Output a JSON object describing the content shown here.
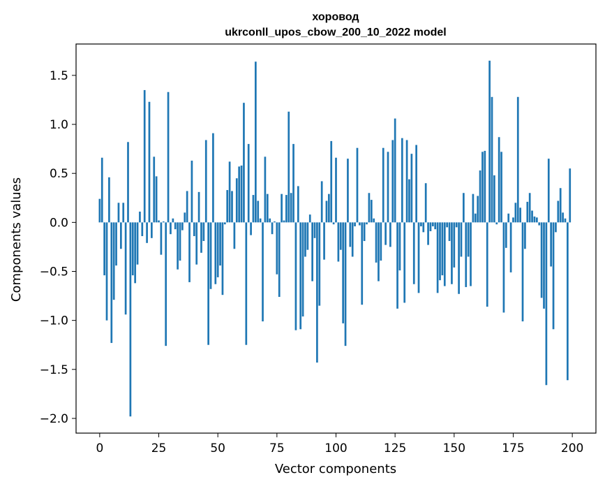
{
  "chart_data": {
    "type": "bar",
    "title": "хоровод",
    "subtitle": "ukrconll_upos_cbow_200_10_2022 model",
    "xlabel": "Vector components",
    "ylabel": "Components values",
    "xlim": [
      -10,
      210
    ],
    "ylim": [
      -2.15,
      1.82
    ],
    "xticks": [
      0,
      25,
      50,
      75,
      100,
      125,
      150,
      175,
      200
    ],
    "yticks": [
      -2.0,
      -1.5,
      -1.0,
      -0.5,
      0.0,
      0.5,
      1.0,
      1.5
    ],
    "ytick_labels": [
      "−2.0",
      "−1.5",
      "−1.0",
      "−0.5",
      "0.0",
      "0.5",
      "1.0",
      "1.5"
    ],
    "grid": false,
    "bar_color": "#1f77b4",
    "series": [
      {
        "values": [
          0.24,
          0.66,
          -0.54,
          -1.0,
          0.46,
          -1.23,
          -0.79,
          -0.44,
          0.2,
          -0.27,
          0.2,
          -0.94,
          0.82,
          -1.98,
          -0.54,
          -0.62,
          -0.43,
          0.11,
          -0.14,
          1.35,
          -0.21,
          1.23,
          -0.16,
          0.67,
          0.47,
          0.02,
          -0.33,
          0.01,
          -1.26,
          1.33,
          -0.12,
          0.04,
          -0.07,
          -0.48,
          -0.39,
          -0.08,
          0.1,
          0.32,
          -0.61,
          0.63,
          -0.14,
          -0.43,
          0.31,
          -0.31,
          -0.19,
          0.84,
          -1.25,
          -0.68,
          0.91,
          -0.63,
          -0.56,
          -0.44,
          -0.74,
          -0.02,
          0.33,
          0.62,
          0.32,
          -0.27,
          0.45,
          0.57,
          0.58,
          1.22,
          -1.25,
          0.8,
          -0.13,
          0.28,
          1.64,
          0.22,
          0.04,
          -1.01,
          0.67,
          0.29,
          0.04,
          -0.12,
          0.01,
          -0.53,
          -0.76,
          0.29,
          0.02,
          0.28,
          1.13,
          0.3,
          0.8,
          -1.1,
          0.37,
          -1.09,
          -0.96,
          -0.35,
          -0.28,
          0.08,
          -0.6,
          -0.16,
          -1.43,
          -0.85,
          0.42,
          -0.38,
          0.22,
          0.29,
          0.83,
          -0.02,
          0.66,
          -0.4,
          -0.28,
          -1.03,
          -1.26,
          0.65,
          -0.25,
          -0.35,
          -0.04,
          0.76,
          -0.03,
          -0.84,
          -0.19,
          -0.02,
          0.3,
          0.23,
          0.04,
          -0.41,
          -0.6,
          -0.39,
          0.76,
          -0.23,
          0.72,
          -0.25,
          0.84,
          1.06,
          -0.88,
          -0.49,
          0.86,
          -0.82,
          0.84,
          0.44,
          0.7,
          -0.63,
          0.79,
          -0.72,
          -0.04,
          -0.1,
          0.4,
          -0.23,
          -0.09,
          -0.04,
          -0.07,
          -0.72,
          -0.59,
          -0.54,
          -0.65,
          -0.05,
          -0.19,
          -0.63,
          -0.46,
          -0.05,
          -0.73,
          -0.35,
          0.3,
          -0.66,
          -0.35,
          -0.65,
          0.29,
          0.09,
          0.27,
          0.53,
          0.72,
          0.73,
          -0.86,
          1.65,
          1.28,
          0.48,
          -0.02,
          0.87,
          0.72,
          -0.92,
          -0.26,
          0.09,
          -0.51,
          0.05,
          0.2,
          1.28,
          0.15,
          -1.01,
          -0.27,
          0.21,
          0.3,
          0.12,
          0.06,
          0.05,
          -0.03,
          -0.77,
          -0.88,
          -1.66,
          0.65,
          -0.45,
          -1.09,
          -0.1,
          0.22,
          0.35,
          0.1,
          0.04,
          -1.61,
          0.55
        ]
      }
    ]
  }
}
